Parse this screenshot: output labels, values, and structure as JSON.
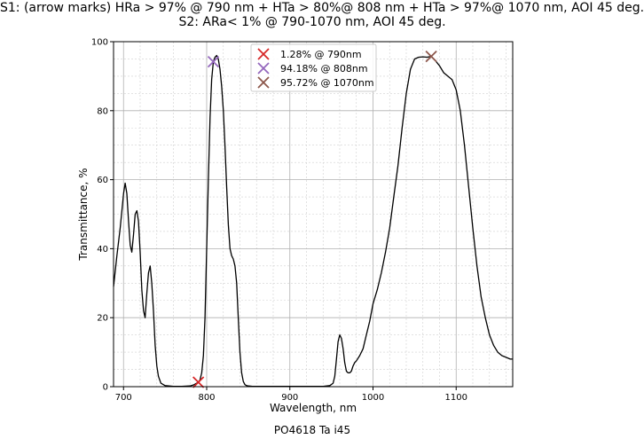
{
  "title_line1": "S1: (arrow marks) HRa > 97% @ 790 nm + HTa > 80%@ 808 nm + HTa > 97%@ 1070 nm, AOI 45 deg.",
  "title_line2": "S2: ARa< 1% @ 790-1070 nm, AOI 45 deg.",
  "footer": "PO4618 Ta i45",
  "chart_data": {
    "type": "line",
    "xlabel": "Wavelength, nm",
    "ylabel": "Transmittance, %",
    "xlim": [
      688,
      1168
    ],
    "ylim": [
      0,
      100
    ],
    "xticks": [
      700,
      800,
      900,
      1000,
      1100
    ],
    "yticks": [
      0,
      20,
      40,
      60,
      80,
      100
    ],
    "grid": true,
    "legend_position": "top-center",
    "series": [
      {
        "color": "#000000",
        "x": [
          688,
          692,
          696,
          700,
          702,
          704,
          706,
          708,
          710,
          712,
          714,
          716,
          718,
          720,
          722,
          724,
          726,
          728,
          730,
          732,
          734,
          736,
          738,
          740,
          742,
          745,
          750,
          760,
          770,
          780,
          785,
          790,
          792,
          794,
          796,
          798,
          800,
          802,
          804,
          806,
          808,
          810,
          812,
          814,
          816,
          818,
          820,
          822,
          824,
          826,
          828,
          830,
          832,
          834,
          836,
          838,
          840,
          842,
          844,
          846,
          848,
          850,
          855,
          860,
          880,
          900,
          920,
          940,
          948,
          952,
          954,
          956,
          958,
          960,
          962,
          964,
          966,
          968,
          970,
          972,
          974,
          976,
          978,
          980,
          984,
          988,
          992,
          996,
          1000,
          1005,
          1010,
          1015,
          1020,
          1025,
          1030,
          1035,
          1040,
          1045,
          1050,
          1055,
          1060,
          1065,
          1070,
          1075,
          1080,
          1085,
          1090,
          1095,
          1100,
          1105,
          1110,
          1115,
          1120,
          1125,
          1130,
          1135,
          1140,
          1145,
          1150,
          1155,
          1160,
          1165,
          1168
        ],
        "y": [
          29,
          38,
          46,
          56,
          59,
          56,
          48,
          41,
          39,
          44,
          50,
          51,
          48,
          39,
          28,
          22,
          20,
          27,
          33,
          35,
          30,
          22,
          12,
          6,
          3,
          1,
          0.3,
          0.1,
          0.1,
          0.2,
          0.6,
          1.28,
          2,
          4,
          9,
          20,
          40,
          60,
          78,
          89,
          94.18,
          95.5,
          96,
          95,
          92,
          87,
          80,
          70,
          58,
          47,
          40,
          38,
          37,
          35,
          30,
          20,
          10,
          4,
          1.5,
          0.6,
          0.3,
          0.2,
          0.1,
          0.1,
          0.1,
          0.1,
          0.1,
          0.1,
          0.3,
          1,
          3,
          8,
          13,
          15,
          14,
          11,
          7,
          4.5,
          4,
          4,
          4.5,
          6,
          7,
          7.5,
          9,
          11,
          15,
          19,
          24,
          28,
          33,
          39,
          46,
          55,
          64,
          75,
          85,
          92,
          95,
          95.5,
          95.6,
          95.5,
          95.72,
          94.5,
          93,
          91,
          90,
          89,
          86,
          80,
          70,
          58,
          46,
          35,
          26,
          20,
          15,
          12,
          10,
          9,
          8.5,
          8,
          8
        ]
      }
    ],
    "markers": [
      {
        "x": 790,
        "y": 1.28,
        "color": "#d62728",
        "label": "1.28% @ 790nm"
      },
      {
        "x": 808,
        "y": 94.18,
        "color": "#9467bd",
        "label": "94.18% @ 808nm"
      },
      {
        "x": 1070,
        "y": 95.72,
        "color": "#8c564b",
        "label": "95.72% @ 1070nm"
      }
    ]
  }
}
